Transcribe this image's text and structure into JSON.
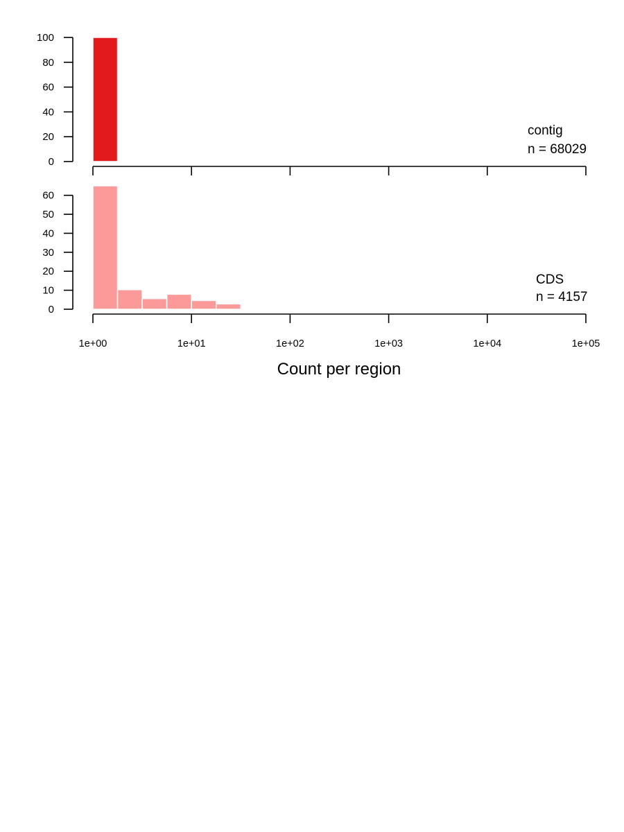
{
  "chart_data": {
    "type": "bar",
    "xlabel": "Count per region",
    "x_scale": "log10",
    "xlim": [
      1,
      100000
    ],
    "x_ticks": [
      1,
      10,
      100,
      1000,
      10000,
      100000
    ],
    "x_tick_labels": [
      "1e+00",
      "1e+01",
      "1e+02",
      "1e+03",
      "1e+04",
      "1e+05"
    ],
    "bin_edges": [
      1,
      1.778,
      3.162,
      5.623,
      10,
      17.78,
      31.62,
      56.23,
      100
    ],
    "panels": [
      {
        "name": "contig",
        "n_text": "n =  68029",
        "color": "#e31a1c",
        "ylim": [
          0,
          100
        ],
        "y_ticks": [
          0,
          20,
          40,
          60,
          80,
          100
        ],
        "values": [
          100,
          0,
          0,
          0,
          0,
          0,
          0,
          0
        ]
      },
      {
        "name": "CDS",
        "n_text": "n =  4157",
        "color": "#fb9a99",
        "ylim": [
          0,
          65
        ],
        "y_ticks": [
          0,
          10,
          20,
          30,
          40,
          50,
          60
        ],
        "values": [
          65,
          10.3,
          5.6,
          7.9,
          4.6,
          2.8,
          0.5,
          0.4
        ],
        "bar_colors": [
          "#fb9a99",
          "#fb9a99",
          "#fb9a99",
          "#fb9a99",
          "#fb9a99",
          "#fb9a99",
          "#fde0dc",
          "#fde0dc"
        ]
      }
    ]
  }
}
